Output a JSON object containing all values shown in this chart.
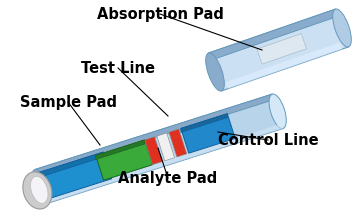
{
  "background_color": "#ffffff",
  "labels": {
    "absorption_pad": "Absorption Pad",
    "test_line": "Test Line",
    "sample_pad": "Sample Pad",
    "control_line": "Control Line",
    "analyte_pad": "Analyte Pad"
  },
  "label_fontsize": 10.5,
  "colors": {
    "tray_main": "#b8d4ea",
    "tray_light": "#d4e8f8",
    "tray_dark": "#88aac8",
    "tray_edge": "#6699bb",
    "sample_blue": "#1e90d0",
    "sample_blue_dark": "#1470a8",
    "analyte_green": "#3aaa3a",
    "analyte_green_dark": "#267826",
    "test_red": "#e03020",
    "test_white": "#f0f0f0",
    "control_blue": "#2288cc",
    "control_blue_dark": "#1a6699",
    "abs_body": "#b0cce4",
    "abs_top": "#cce0f4",
    "abs_dark": "#8aaccc",
    "abs_window": "#dde8f0",
    "cap_outer": "#cccccc",
    "cap_inner": "#e8e8ec",
    "cap_highlight": "#f4f4f8",
    "white": "#ffffff"
  }
}
